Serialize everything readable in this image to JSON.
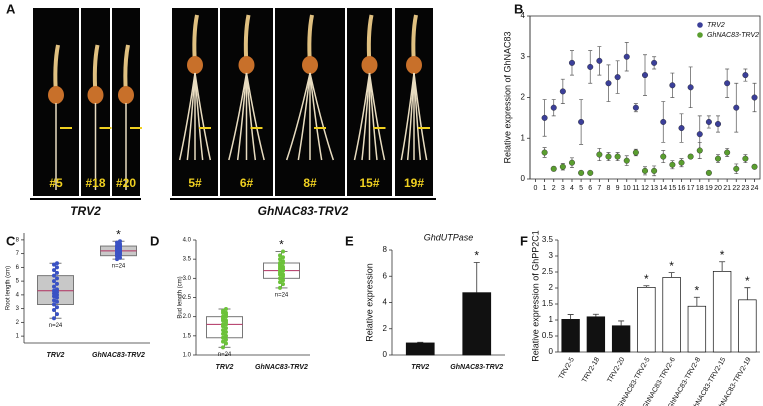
{
  "panel_a": {
    "label": "A",
    "photos": [
      {
        "label": "#5"
      },
      {
        "label": "#18"
      },
      {
        "label": "#20"
      },
      {
        "label": "5#"
      },
      {
        "label": "6#"
      },
      {
        "label": "8#"
      },
      {
        "label": "15#"
      },
      {
        "label": "19#"
      }
    ],
    "groups": [
      {
        "label": "TRV2"
      },
      {
        "label": "GhNAC83-TRV2"
      }
    ]
  },
  "chart_data": [
    {
      "panel": "B",
      "type": "scatter",
      "ylabel": "Relative expression of GhNAC83",
      "x": [
        1,
        2,
        3,
        4,
        5,
        6,
        7,
        8,
        9,
        10,
        11,
        12,
        13,
        14,
        15,
        16,
        17,
        18,
        19,
        20,
        21,
        22,
        23,
        24
      ],
      "xlim": [
        -0.6,
        24.6
      ],
      "xticks": [
        0,
        1,
        2,
        3,
        4,
        5,
        6,
        7,
        8,
        9,
        10,
        11,
        12,
        13,
        14,
        15,
        16,
        17,
        18,
        19,
        20,
        21,
        22,
        23,
        24
      ],
      "ylim": [
        0,
        4
      ],
      "yticks": [
        0,
        1,
        2,
        3,
        4
      ],
      "legend": "upper right",
      "series": [
        {
          "name": "TRV2",
          "color": "#3b3f99",
          "values": [
            1.5,
            1.75,
            2.15,
            2.85,
            1.4,
            2.75,
            2.9,
            2.35,
            2.5,
            3.0,
            1.75,
            2.55,
            2.85,
            1.4,
            2.3,
            1.25,
            2.25,
            1.1,
            1.4,
            1.35,
            2.35,
            1.75,
            2.55,
            2.0
          ],
          "errors": [
            0.45,
            0.2,
            0.3,
            0.3,
            0.55,
            0.4,
            0.35,
            0.45,
            0.4,
            0.35,
            0.1,
            0.5,
            0.15,
            0.5,
            0.3,
            0.35,
            0.5,
            0.45,
            0.15,
            0.2,
            0.35,
            0.6,
            0.15,
            0.35
          ]
        },
        {
          "name": "GhNAC83-TRV2",
          "color": "#5a9e2f",
          "values": [
            0.65,
            0.25,
            0.3,
            0.4,
            0.15,
            0.15,
            0.6,
            0.55,
            0.55,
            0.45,
            0.65,
            0.2,
            0.2,
            0.55,
            0.35,
            0.4,
            0.55,
            0.7,
            0.15,
            0.5,
            0.65,
            0.25,
            0.5,
            0.3
          ],
          "errors": [
            0.12,
            0.05,
            0.08,
            0.12,
            0.05,
            0.04,
            0.15,
            0.1,
            0.1,
            0.12,
            0.08,
            0.1,
            0.12,
            0.15,
            0.1,
            0.1,
            0.05,
            0.2,
            0.05,
            0.1,
            0.1,
            0.12,
            0.1,
            0.05
          ]
        }
      ]
    },
    {
      "panel": "C",
      "type": "box",
      "ylabel": "Root length (cm)",
      "categories": [
        "TRV2",
        "GhNAC83-TRV2"
      ],
      "ylim": [
        0.5,
        8.5
      ],
      "yticks": [
        1,
        2,
        3,
        4,
        5,
        6,
        7,
        8
      ],
      "box_color": "#c8c8c8",
      "point_color": "#3a52c4",
      "boxes": [
        {
          "whisker_low": 2.3,
          "q1": 3.3,
          "median": 4.3,
          "q3": 5.4,
          "whisker_high": 6.3
        },
        {
          "whisker_low": 6.6,
          "q1": 6.85,
          "median": 7.2,
          "q3": 7.55,
          "whisker_high": 7.9
        }
      ],
      "points": [
        [
          2.3,
          2.6,
          2.9,
          3.1,
          3.3,
          3.5,
          3.6,
          3.8,
          3.9,
          4.0,
          4.1,
          4.2,
          4.3,
          4.4,
          4.6,
          4.8,
          5.0,
          5.2,
          5.4,
          5.6,
          5.8,
          6.0,
          6.2,
          6.3
        ],
        [
          6.6,
          6.7,
          6.8,
          6.9,
          6.9,
          7.0,
          7.0,
          7.1,
          7.1,
          7.2,
          7.2,
          7.2,
          7.3,
          7.3,
          7.3,
          7.4,
          7.4,
          7.5,
          7.5,
          7.6,
          7.6,
          7.7,
          7.8,
          7.9
        ]
      ],
      "annotations": [
        {
          "text": "*",
          "category": "GhNAC83-TRV2"
        },
        {
          "text": "n=24",
          "category": "TRV2"
        },
        {
          "text": "n=24",
          "category": "GhNAC83-TRV2"
        }
      ]
    },
    {
      "panel": "D",
      "type": "box",
      "ylabel": "Bud length (cm)",
      "categories": [
        "TRV2",
        "GhNAC83-TRV2"
      ],
      "ylim": [
        1,
        4
      ],
      "yticks": [
        {
          "value": 1,
          "label": "1.0"
        },
        1.5,
        {
          "value": 2,
          "label": "2.0"
        },
        2.5,
        {
          "value": 3,
          "label": "3.0"
        },
        3.5,
        {
          "value": 4,
          "label": "4.0"
        }
      ],
      "box_color": "#ffffff",
      "point_color": "#6cc23a",
      "boxes": [
        {
          "whisker_low": 1.2,
          "q1": 1.45,
          "median": 1.8,
          "q3": 2.0,
          "whisker_high": 2.2
        },
        {
          "whisker_low": 2.75,
          "q1": 3.0,
          "median": 3.2,
          "q3": 3.4,
          "whisker_high": 3.7
        }
      ],
      "points": [
        [
          1.2,
          1.3,
          1.35,
          1.4,
          1.45,
          1.5,
          1.55,
          1.6,
          1.65,
          1.7,
          1.75,
          1.8,
          1.8,
          1.85,
          1.9,
          1.9,
          1.95,
          2.0,
          2.0,
          2.05,
          2.1,
          2.1,
          2.15,
          2.2
        ],
        [
          2.75,
          2.85,
          2.9,
          2.95,
          3.0,
          3.05,
          3.1,
          3.1,
          3.15,
          3.2,
          3.2,
          3.2,
          3.25,
          3.25,
          3.3,
          3.3,
          3.35,
          3.4,
          3.4,
          3.45,
          3.5,
          3.55,
          3.6,
          3.7
        ]
      ],
      "annotations": [
        {
          "text": "*",
          "category": "GhNAC83-TRV2"
        },
        {
          "text": "n=24",
          "category": "TRV2"
        },
        {
          "text": "n=24",
          "category": "GhNAC83-TRV2"
        }
      ]
    },
    {
      "panel": "E",
      "type": "bar",
      "title": "GhdUTPase",
      "ylabel": "Relative expression",
      "categories": [
        "TRV2",
        "GhNAC83-TRV2"
      ],
      "values": [
        0.92,
        4.75
      ],
      "errors": [
        0.05,
        2.3
      ],
      "colors": [
        "#111111",
        "#111111"
      ],
      "ylim": [
        0,
        8
      ],
      "yticks": [
        0,
        2,
        4,
        6,
        8
      ],
      "annotations": [
        {
          "text": "*",
          "category": "GhNAC83-TRV2"
        }
      ]
    },
    {
      "panel": "F",
      "type": "bar",
      "ylabel": "Relative expression of GhPP2C1",
      "categories": [
        "TRV2-5",
        "TRV2-18",
        "TRV2-20",
        "GhNAC83-TRV2-5",
        "GhNAC83-TRV2-6",
        "GhNAC83-TRV2-8",
        "GhNAC83-TRV2-15",
        "GhNAC83-TRV2-19"
      ],
      "values": [
        1.02,
        1.1,
        0.82,
        2.02,
        2.33,
        1.43,
        2.52,
        1.63
      ],
      "errors": [
        0.15,
        0.08,
        0.15,
        0.05,
        0.15,
        0.28,
        0.3,
        0.38
      ],
      "colors": [
        "#111111",
        "#111111",
        "#111111",
        "#ffffff",
        "#ffffff",
        "#ffffff",
        "#ffffff",
        "#ffffff"
      ],
      "ylim": [
        0,
        3.5
      ],
      "yticks": [
        0,
        0.5,
        1,
        1.5,
        2,
        2.5,
        3,
        3.5
      ],
      "annotations": [
        {
          "text": "*",
          "category": "GhNAC83-TRV2-5"
        },
        {
          "text": "*",
          "category": "GhNAC83-TRV2-6"
        },
        {
          "text": "*",
          "category": "GhNAC83-TRV2-8"
        },
        {
          "text": "*",
          "category": "GhNAC83-TRV2-15"
        },
        {
          "text": "*",
          "category": "GhNAC83-TRV2-19"
        }
      ]
    }
  ]
}
